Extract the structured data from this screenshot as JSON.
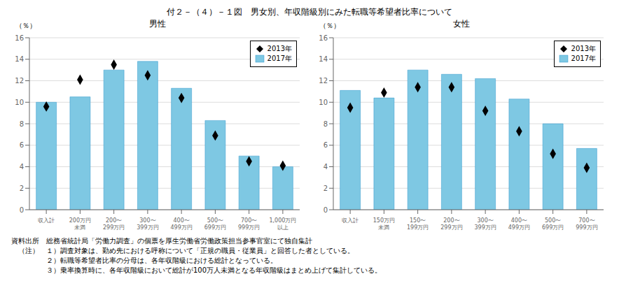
{
  "title": "付２－（４）－１図　男女別、年収階級別にみた転職等希望者比率について",
  "annotations": [
    "資料出所　総務省統計局「労働力調査」の個票を厚生労働省労働政策担当参事官室にて独自集計",
    "　（注）　１）調査対象は、勤め先における呼称について「正規の職員・従業員」と回答した者としている。",
    "　　　　　２）転職等希望者比率の分母は、各年収階級における総計となっている。",
    "　　　　　３）乗率換算時に、各年収階級において総計が100万人未満となる年収階級はまとめ上げて集計している。"
  ],
  "chart_data": [
    {
      "type": "bar",
      "subtitle": "男性",
      "categories": [
        "収入計",
        "200万円\n未満",
        "200〜\n299万円",
        "300〜\n399万円",
        "400〜\n499万円",
        "500〜\n699万円",
        "700〜\n999万円",
        "1,000万円\n以上"
      ],
      "series": [
        {
          "name": "2013年",
          "type": "scatter",
          "marker": "diamond",
          "color": "black",
          "values": [
            9.6,
            12.1,
            13.5,
            12.5,
            10.4,
            6.9,
            4.5,
            4.1
          ]
        },
        {
          "name": "2017年",
          "type": "bar",
          "color": "#7EC8E3",
          "values": [
            10.0,
            10.5,
            13.0,
            13.8,
            11.3,
            8.3,
            5.0,
            4.0
          ]
        }
      ],
      "ylim": [
        0,
        16
      ],
      "yticks": [
        0,
        2,
        4,
        6,
        8,
        10,
        12,
        14,
        16
      ],
      "ylabel": "（％）",
      "grid": true,
      "legend": "upper right"
    },
    {
      "type": "bar",
      "subtitle": "女性",
      "categories": [
        "収入計",
        "150万円\n未満",
        "150〜\n199万円",
        "200〜\n299万円",
        "300〜\n399万円",
        "400〜\n499万円",
        "500〜\n699万円",
        "700〜\n999万円"
      ],
      "series": [
        {
          "name": "2013年",
          "type": "scatter",
          "marker": "diamond",
          "color": "black",
          "values": [
            9.5,
            10.9,
            11.4,
            11.4,
            9.2,
            7.3,
            5.2,
            3.9
          ]
        },
        {
          "name": "2017年",
          "type": "bar",
          "color": "#7EC8E3",
          "values": [
            11.1,
            10.4,
            13.0,
            12.6,
            12.2,
            10.3,
            8.0,
            5.7
          ]
        }
      ],
      "ylim": [
        0,
        16
      ],
      "yticks": [
        0,
        2,
        4,
        6,
        8,
        10,
        12,
        14,
        16
      ],
      "ylabel": "（％）",
      "grid": true,
      "legend": "upper right"
    }
  ]
}
